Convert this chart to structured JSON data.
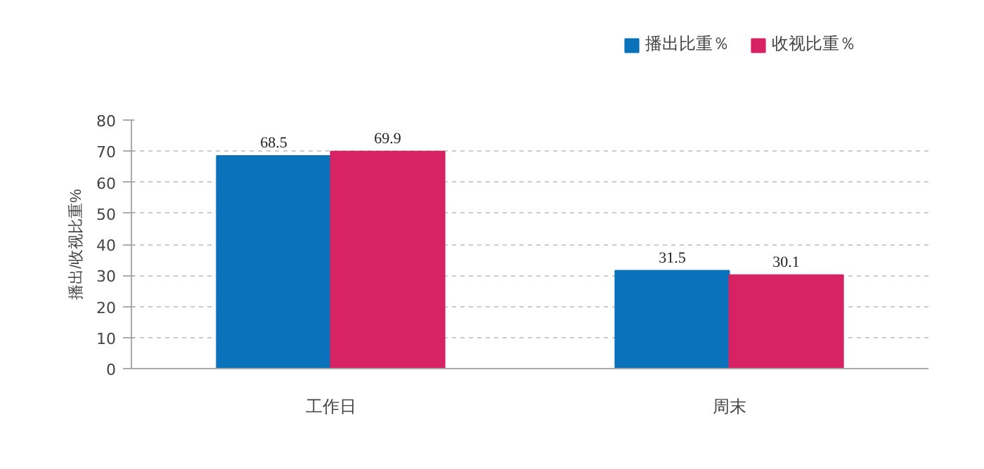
{
  "chart_data": {
    "type": "bar",
    "ylabel": "播出/收视比重%",
    "categories": [
      "工作日",
      "周末"
    ],
    "series": [
      {
        "name": "播出比重％",
        "color": "#0a72bb",
        "values": [
          68.5,
          31.5
        ]
      },
      {
        "name": "收视比重％",
        "color": "#d72263",
        "values": [
          69.9,
          30.1
        ]
      }
    ],
    "ylim": [
      0,
      80
    ],
    "yticks": [
      0,
      10,
      20,
      30,
      40,
      50,
      60,
      70,
      80
    ],
    "grid": "y",
    "legend": "top right",
    "data_labels": true
  }
}
